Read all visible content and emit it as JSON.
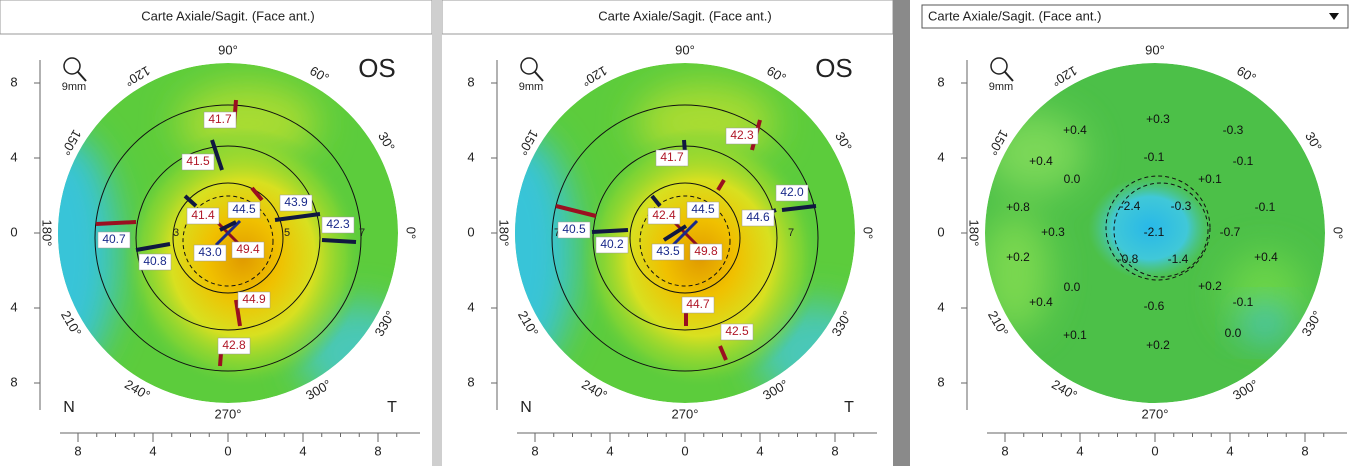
{
  "panels": [
    {
      "header": "Carte Axiale/Sagit. (Face ant.)",
      "eye": "OS",
      "scale_icon": "9mm",
      "angles": [
        "90°",
        "60°",
        "30°",
        "0°",
        "330°",
        "300°",
        "270°",
        "240°",
        "210°",
        "180°",
        "150°",
        "120°"
      ],
      "y_axis": [
        "8",
        "4",
        "0",
        "4",
        "8"
      ],
      "x_axis": [
        "8",
        "4",
        "0",
        "4",
        "8"
      ],
      "nasal": "N",
      "temporal": "T",
      "ring_labels": [
        "3",
        "5",
        "7"
      ],
      "readings": [
        {
          "text": "41.7",
          "color": "#b01828"
        },
        {
          "text": "41.5",
          "color": "#b01828"
        },
        {
          "text": "41.4",
          "color": "#b01828"
        },
        {
          "text": "44.5",
          "color": "#1a2a8a"
        },
        {
          "text": "43.9",
          "color": "#1a2a8a"
        },
        {
          "text": "42.3",
          "color": "#1a2a8a"
        },
        {
          "text": "40.7",
          "color": "#1a2a8a"
        },
        {
          "text": "40.8",
          "color": "#1a2a8a"
        },
        {
          "text": "43.0",
          "color": "#1a2a8a"
        },
        {
          "text": "49.4",
          "color": "#b01828"
        },
        {
          "text": "44.9",
          "color": "#b01828"
        },
        {
          "text": "42.8",
          "color": "#b01828"
        }
      ]
    },
    {
      "header": "Carte Axiale/Sagit. (Face ant.)",
      "eye": "OS",
      "scale_icon": "9mm",
      "angles": [
        "90°",
        "60°",
        "30°",
        "0°",
        "330°",
        "300°",
        "270°",
        "240°",
        "210°",
        "180°",
        "150°",
        "120°"
      ],
      "y_axis": [
        "8",
        "4",
        "0",
        "4",
        "8"
      ],
      "x_axis": [
        "8",
        "4",
        "0",
        "4",
        "8"
      ],
      "nasal": "N",
      "temporal": "T",
      "ring_labels": [
        "7",
        "7"
      ],
      "readings": [
        {
          "text": "42.3",
          "color": "#b01828"
        },
        {
          "text": "41.7",
          "color": "#b01828"
        },
        {
          "text": "42.4",
          "color": "#b01828"
        },
        {
          "text": "44.5",
          "color": "#1a2a8a"
        },
        {
          "text": "44.6",
          "color": "#1a2a8a"
        },
        {
          "text": "42.0",
          "color": "#1a2a8a"
        },
        {
          "text": "40.5",
          "color": "#1a2a8a"
        },
        {
          "text": "40.2",
          "color": "#1a2a8a"
        },
        {
          "text": "43.5",
          "color": "#1a2a8a"
        },
        {
          "text": "49.8",
          "color": "#b01828"
        },
        {
          "text": "44.7",
          "color": "#b01828"
        },
        {
          "text": "42.5",
          "color": "#b01828"
        }
      ]
    },
    {
      "header": "Carte Axiale/Sagit. (Face ant.)",
      "scale_icon": "9mm",
      "angles": [
        "90°",
        "60°",
        "30°",
        "0°",
        "330°",
        "300°",
        "270°",
        "240°",
        "210°",
        "180°",
        "150°",
        "120°"
      ],
      "y_axis": [
        "8",
        "4",
        "0",
        "4",
        "8"
      ],
      "x_axis": [
        "8",
        "4",
        "0",
        "4",
        "8"
      ],
      "readings": [
        {
          "text": "+0.4",
          "color": "#111111"
        },
        {
          "text": "+0.3",
          "color": "#111111"
        },
        {
          "text": "-0.3",
          "color": "#111111"
        },
        {
          "text": "+0.4",
          "color": "#111111"
        },
        {
          "text": "-0.1",
          "color": "#111111"
        },
        {
          "text": "-0.1",
          "color": "#111111"
        },
        {
          "text": "0.0",
          "color": "#111111"
        },
        {
          "text": "+0.1",
          "color": "#111111"
        },
        {
          "text": "+0.8",
          "color": "#111111"
        },
        {
          "text": "-2.4",
          "color": "#111111"
        },
        {
          "text": "-0.3",
          "color": "#111111"
        },
        {
          "text": "-0.1",
          "color": "#111111"
        },
        {
          "text": "+0.3",
          "color": "#111111"
        },
        {
          "text": "-2.1",
          "color": "#111111"
        },
        {
          "text": "-0.7",
          "color": "#111111"
        },
        {
          "text": "+0.2",
          "color": "#111111"
        },
        {
          "text": "-0.8",
          "color": "#111111"
        },
        {
          "text": "-1.4",
          "color": "#111111"
        },
        {
          "text": "+0.4",
          "color": "#111111"
        },
        {
          "text": "0.0",
          "color": "#111111"
        },
        {
          "text": "+0.2",
          "color": "#111111"
        },
        {
          "text": "+0.4",
          "color": "#111111"
        },
        {
          "text": "-0.6",
          "color": "#111111"
        },
        {
          "text": "-0.1",
          "color": "#111111"
        },
        {
          "text": "+0.1",
          "color": "#111111"
        },
        {
          "text": "+0.2",
          "color": "#111111"
        },
        {
          "text": "0.0",
          "color": "#111111"
        }
      ]
    }
  ]
}
